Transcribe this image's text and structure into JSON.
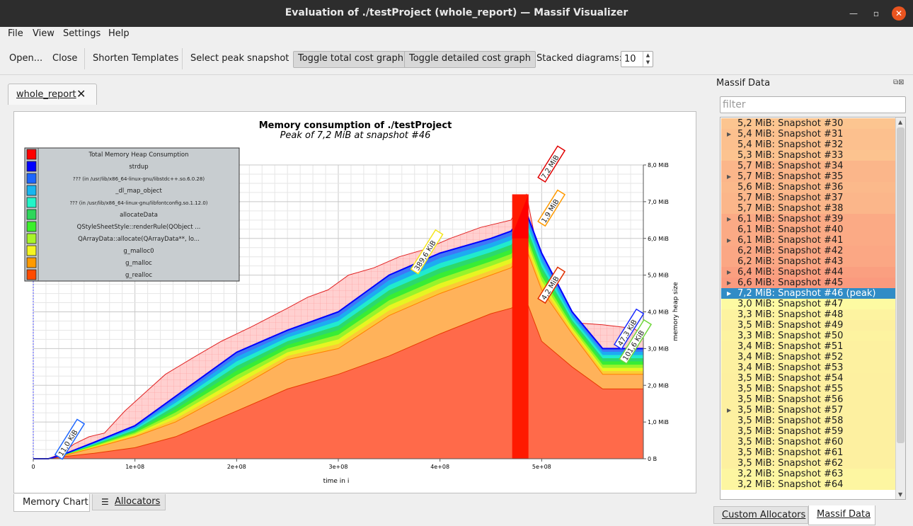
{
  "window": {
    "title": "Evaluation of ./testProject (whole_report) — Massif Visualizer"
  },
  "menu": {
    "file": "File",
    "view": "View",
    "settings": "Settings",
    "help": "Help"
  },
  "toolbar": {
    "open": "Open...",
    "close": "Close",
    "shorten_templates": "Shorten Templates",
    "select_peak": "Select peak snapshot",
    "toggle_total": "Toggle total cost graph",
    "toggle_detailed": "Toggle detailed cost graph",
    "stacked_label": "Stacked diagrams:",
    "stacked_value": "10"
  },
  "doc_tab": {
    "label": "whole_report"
  },
  "chart_tabs": {
    "memory": "Memory Chart",
    "allocators": "Allocators"
  },
  "dock": {
    "title": "Massif Data",
    "filter_placeholder": "filter"
  },
  "bottom_tabs": {
    "custom": "Custom Allocators",
    "massif": "Massif Data"
  },
  "colors": {
    "selection": "#308cc6",
    "total": "#ff0000",
    "strdup": "#0000ff"
  },
  "chart_data": {
    "type": "area",
    "title": "Memory consumption of ./testProject",
    "subtitle": "Peak of 7,2 MiB at snapshot #46",
    "xlabel": "time in i",
    "ylabel": "memory heap size",
    "x_ticks": [
      "0",
      "1e+08",
      "2e+08",
      "3e+08",
      "4e+08",
      "5e+08"
    ],
    "y_ticks": [
      "0 B",
      "1,0 MiB",
      "2,0 MiB",
      "3,0 MiB",
      "4,0 MiB",
      "5,0 MiB",
      "6,0 MiB",
      "7,0 MiB",
      "8,0 MiB"
    ],
    "xlim": [
      0,
      600000000
    ],
    "ylim": [
      0,
      8
    ],
    "grid": true,
    "legend_position": "top-left",
    "legend": [
      {
        "name": "Total Memory Heap Consumption",
        "color": "#ff0000"
      },
      {
        "name": "strdup",
        "color": "#0000ff"
      },
      {
        "name": "??? (in /usr/lib/x86_64-linux-gnu/libstdc++.so.6.0.28)",
        "color": "#1d66ff"
      },
      {
        "name": "_dl_map_object",
        "color": "#17b6f0"
      },
      {
        "name": "??? (in /usr/lib/x86_64-linux-gnu/libfontconfig.so.1.12.0)",
        "color": "#22f5c8"
      },
      {
        "name": "allocateData",
        "color": "#2ed65a"
      },
      {
        "name": "QStyleSheetStyle::renderRule(QObject ...",
        "color": "#3cf02a"
      },
      {
        "name": "QArrayData::allocate(QArrayData**, lo...",
        "color": "#a8f52a"
      },
      {
        "name": "g_malloc0",
        "color": "#f5f521"
      },
      {
        "name": "g_malloc",
        "color": "#ff9a00"
      },
      {
        "name": "g_realloc",
        "color": "#ff4a00"
      }
    ],
    "annotations": [
      {
        "text": "11,0 KiB",
        "x": 25000000,
        "y": 0.05
      },
      {
        "text": "389,6 KiB",
        "x": 375000000,
        "y": 5.1
      },
      {
        "text": "7,2 MiB",
        "x": 500000000,
        "y": 7.6
      },
      {
        "text": "1,9 MiB",
        "x": 500000000,
        "y": 6.4
      },
      {
        "text": "4,2 MiB",
        "x": 500000000,
        "y": 4.3
      },
      {
        "text": "47,3 KiB",
        "x": 575000000,
        "y": 3.05
      },
      {
        "text": "101,6 KiB",
        "x": 580000000,
        "y": 2.65
      }
    ],
    "series": [
      {
        "name": "Total Memory Heap Consumption",
        "x": [
          0,
          15000000,
          28000000,
          40000000,
          55000000,
          70000000,
          90000000,
          110000000,
          130000000,
          160000000,
          185000000,
          215000000,
          250000000,
          270000000,
          290000000,
          310000000,
          335000000,
          360000000,
          385000000,
          410000000,
          440000000,
          470000000,
          478000000,
          485000000,
          495000000,
          510000000,
          535000000,
          560000000,
          590000000,
          600000000
        ],
        "values": [
          0,
          0,
          0.15,
          0.4,
          0.6,
          0.7,
          1.3,
          1.8,
          2.3,
          2.8,
          3.2,
          3.6,
          4.1,
          4.4,
          4.6,
          5.0,
          5.2,
          5.5,
          5.7,
          6.0,
          6.3,
          6.5,
          6.9,
          7.2,
          5.8,
          3.9,
          3.7,
          3.65,
          3.55,
          3.4
        ]
      },
      {
        "name": "g_realloc",
        "x": [
          0,
          15000000,
          28000000,
          60000000,
          100000000,
          140000000,
          200000000,
          250000000,
          300000000,
          350000000,
          400000000,
          450000000,
          470000000,
          478000000,
          485000000,
          500000000,
          530000000,
          560000000,
          600000000
        ],
        "values": [
          0,
          0,
          0.05,
          0.15,
          0.3,
          0.6,
          1.3,
          1.9,
          2.3,
          2.8,
          3.4,
          3.95,
          4.1,
          4.2,
          4.3,
          3.2,
          2.5,
          1.9,
          1.9
        ]
      },
      {
        "name": "g_malloc",
        "x": [
          0,
          15000000,
          28000000,
          60000000,
          100000000,
          140000000,
          200000000,
          250000000,
          300000000,
          350000000,
          400000000,
          450000000,
          470000000,
          478000000,
          485000000,
          500000000,
          530000000,
          560000000,
          600000000
        ],
        "values": [
          0,
          0,
          0.07,
          0.3,
          0.6,
          1.0,
          1.9,
          2.7,
          3.0,
          3.9,
          4.5,
          5.0,
          5.2,
          5.5,
          5.7,
          4.6,
          3.4,
          2.3,
          2.3
        ]
      },
      {
        "name": "strdup",
        "x": [
          0,
          15000000,
          28000000,
          60000000,
          100000000,
          140000000,
          200000000,
          250000000,
          300000000,
          350000000,
          400000000,
          450000000,
          470000000,
          478000000,
          485000000,
          500000000,
          530000000,
          560000000,
          600000000
        ],
        "values": [
          0,
          0,
          0.1,
          0.45,
          0.9,
          1.7,
          2.9,
          3.5,
          4.0,
          5.0,
          5.6,
          6.0,
          6.2,
          6.5,
          6.7,
          5.6,
          4.0,
          3.0,
          3.0
        ]
      }
    ]
  },
  "snapshots": [
    {
      "label": "5,2 MiB: Snapshot #30",
      "expandable": false,
      "selected": false,
      "color": "#fcc590"
    },
    {
      "label": "5,4 MiB: Snapshot #31",
      "expandable": true,
      "selected": false,
      "color": "#fcc08e"
    },
    {
      "label": "5,4 MiB: Snapshot #32",
      "expandable": false,
      "selected": false,
      "color": "#fcc08e"
    },
    {
      "label": "5,3 MiB: Snapshot #33",
      "expandable": false,
      "selected": false,
      "color": "#fcc38f"
    },
    {
      "label": "5,7 MiB: Snapshot #34",
      "expandable": false,
      "selected": false,
      "color": "#fbb68a"
    },
    {
      "label": "5,7 MiB: Snapshot #35",
      "expandable": true,
      "selected": false,
      "color": "#fbb68a"
    },
    {
      "label": "5,6 MiB: Snapshot #36",
      "expandable": false,
      "selected": false,
      "color": "#fbb98b"
    },
    {
      "label": "5,7 MiB: Snapshot #37",
      "expandable": false,
      "selected": false,
      "color": "#fbb68a"
    },
    {
      "label": "5,7 MiB: Snapshot #38",
      "expandable": false,
      "selected": false,
      "color": "#fbb68a"
    },
    {
      "label": "6,1 MiB: Snapshot #39",
      "expandable": true,
      "selected": false,
      "color": "#fbaa85"
    },
    {
      "label": "6,1 MiB: Snapshot #40",
      "expandable": false,
      "selected": false,
      "color": "#fbaa85"
    },
    {
      "label": "6,1 MiB: Snapshot #41",
      "expandable": true,
      "selected": false,
      "color": "#fbaa85"
    },
    {
      "label": "6,2 MiB: Snapshot #42",
      "expandable": false,
      "selected": false,
      "color": "#fba784"
    },
    {
      "label": "6,2 MiB: Snapshot #43",
      "expandable": false,
      "selected": false,
      "color": "#fba784"
    },
    {
      "label": "6,4 MiB: Snapshot #44",
      "expandable": true,
      "selected": false,
      "color": "#fa9f80"
    },
    {
      "label": "6,6 MiB: Snapshot #45",
      "expandable": true,
      "selected": false,
      "color": "#fa9a7e"
    },
    {
      "label": "7,2 MiB: Snapshot #46 (peak)",
      "expandable": true,
      "selected": true,
      "color": "#308cc6"
    },
    {
      "label": "3,0 MiB: Snapshot #47",
      "expandable": false,
      "selected": false,
      "color": "#fdfaa2"
    },
    {
      "label": "3,3 MiB: Snapshot #48",
      "expandable": false,
      "selected": false,
      "color": "#fdf3a0"
    },
    {
      "label": "3,5 MiB: Snapshot #49",
      "expandable": false,
      "selected": false,
      "color": "#fdf0a0"
    },
    {
      "label": "3,3 MiB: Snapshot #50",
      "expandable": false,
      "selected": false,
      "color": "#fdf3a0"
    },
    {
      "label": "3,4 MiB: Snapshot #51",
      "expandable": false,
      "selected": false,
      "color": "#fdf1a0"
    },
    {
      "label": "3,4 MiB: Snapshot #52",
      "expandable": false,
      "selected": false,
      "color": "#fdf1a0"
    },
    {
      "label": "3,4 MiB: Snapshot #53",
      "expandable": false,
      "selected": false,
      "color": "#fdf1a0"
    },
    {
      "label": "3,5 MiB: Snapshot #54",
      "expandable": false,
      "selected": false,
      "color": "#fdf0a0"
    },
    {
      "label": "3,5 MiB: Snapshot #55",
      "expandable": false,
      "selected": false,
      "color": "#fdf0a0"
    },
    {
      "label": "3,5 MiB: Snapshot #56",
      "expandable": false,
      "selected": false,
      "color": "#fdf0a0"
    },
    {
      "label": "3,5 MiB: Snapshot #57",
      "expandable": true,
      "selected": false,
      "color": "#fdf0a0"
    },
    {
      "label": "3,5 MiB: Snapshot #58",
      "expandable": false,
      "selected": false,
      "color": "#fdf0a0"
    },
    {
      "label": "3,5 MiB: Snapshot #59",
      "expandable": false,
      "selected": false,
      "color": "#fdf0a0"
    },
    {
      "label": "3,5 MiB: Snapshot #60",
      "expandable": false,
      "selected": false,
      "color": "#fdf0a0"
    },
    {
      "label": "3,5 MiB: Snapshot #61",
      "expandable": false,
      "selected": false,
      "color": "#fdf0a0"
    },
    {
      "label": "3,5 MiB: Snapshot #62",
      "expandable": false,
      "selected": false,
      "color": "#fdf0a0"
    },
    {
      "label": "3,2 MiB: Snapshot #63",
      "expandable": false,
      "selected": false,
      "color": "#fdf6a1"
    },
    {
      "label": "3,2 MiB: Snapshot #64",
      "expandable": false,
      "selected": false,
      "color": "#fdf6a1"
    }
  ]
}
